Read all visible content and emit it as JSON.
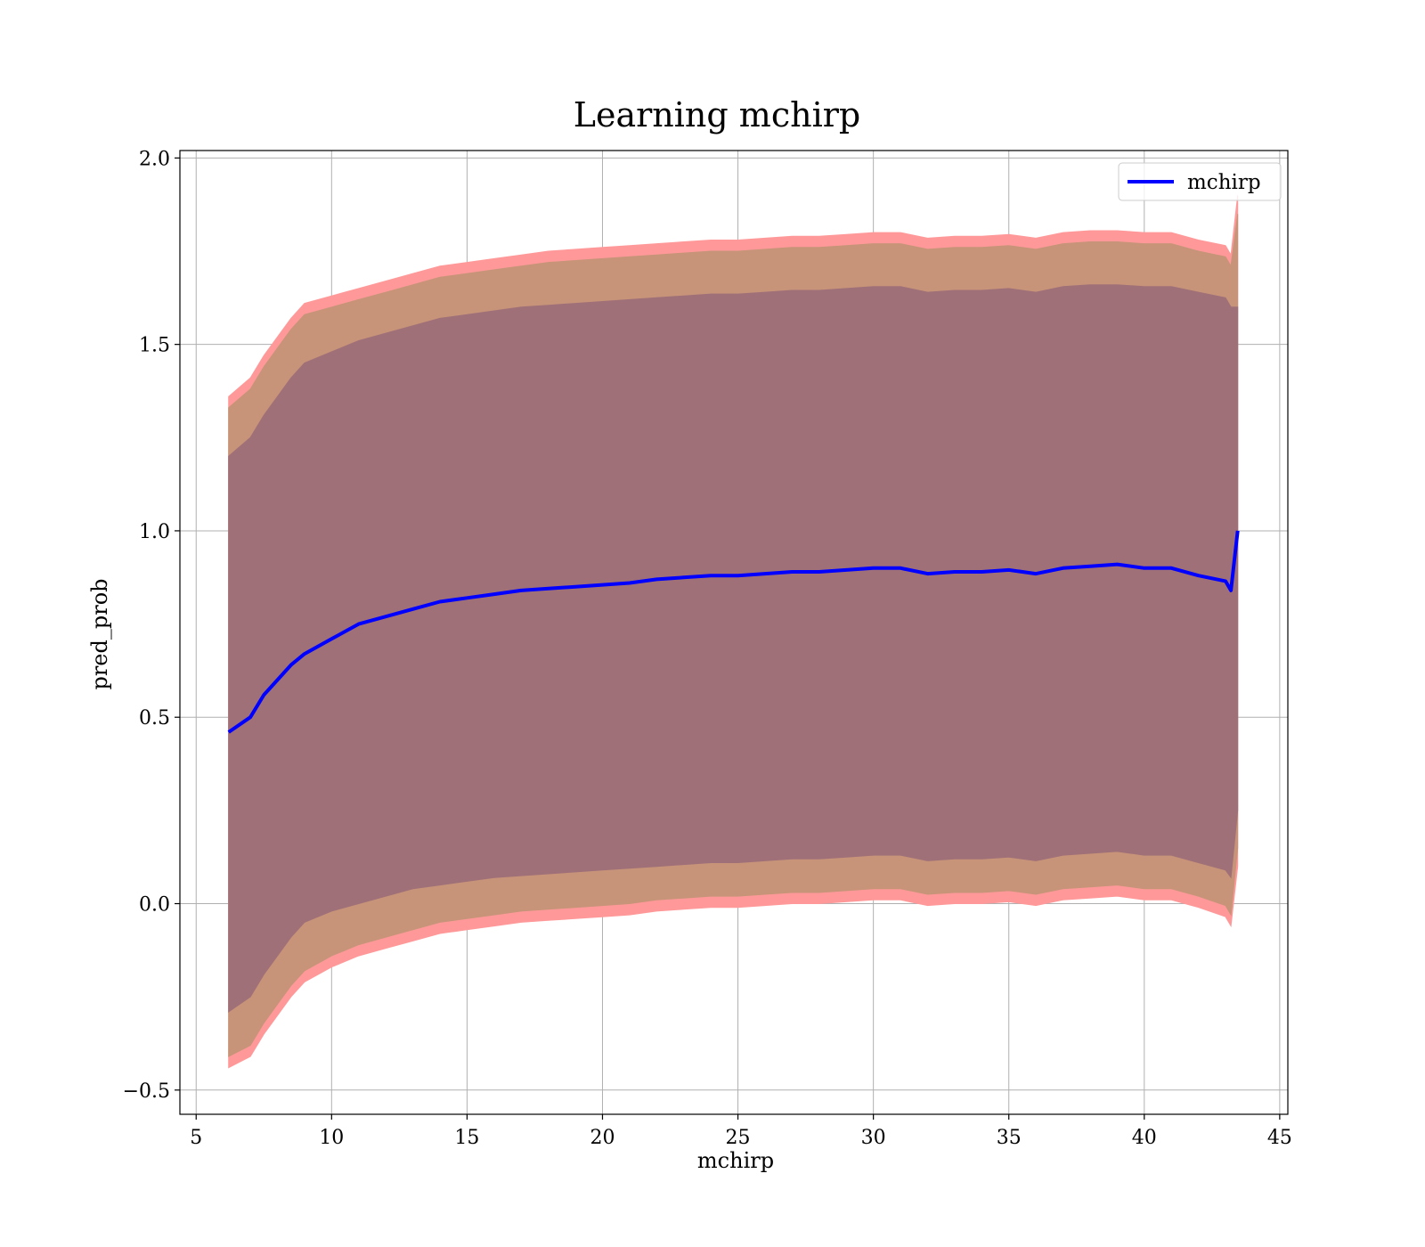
{
  "chart_data": {
    "type": "line",
    "title": "Learning mchirp",
    "xlabel": "mchirp",
    "ylabel": "pred_prob",
    "xlim": [
      4.4,
      45.3
    ],
    "ylim": [
      -0.565,
      2.02
    ],
    "xticks": [
      5,
      10,
      15,
      20,
      25,
      30,
      35,
      40,
      45
    ],
    "yticks": [
      -0.5,
      0.0,
      0.5,
      1.0,
      1.5,
      2.0
    ],
    "xtick_labels": [
      "5",
      "10",
      "15",
      "20",
      "25",
      "30",
      "35",
      "40",
      "45"
    ],
    "ytick_labels": [
      "−0.5",
      "0.0",
      "0.5",
      "1.0",
      "1.5",
      "2.0"
    ],
    "grid": true,
    "legend_position": "top-right",
    "colors": {
      "mean_line": "#0000ff",
      "band_outer": "#ff9999",
      "band_middle": "#c79479",
      "band_inner": "#a07078",
      "grid": "#b0b0b0"
    },
    "series": [
      {
        "name": "mchirp",
        "x": [
          6.2,
          7.0,
          7.5,
          8.0,
          8.5,
          9.0,
          10.0,
          11.0,
          12.0,
          13.0,
          14.0,
          15.0,
          16.0,
          17.0,
          18.0,
          19.0,
          20.0,
          21.0,
          22.0,
          23.0,
          24.0,
          25.0,
          26.0,
          27.0,
          28.0,
          29.0,
          30.0,
          31.0,
          32.0,
          33.0,
          34.0,
          35.0,
          36.0,
          37.0,
          38.0,
          39.0,
          40.0,
          41.0,
          42.0,
          43.0,
          43.2,
          43.45
        ],
        "y": [
          0.46,
          0.5,
          0.56,
          0.6,
          0.64,
          0.67,
          0.71,
          0.75,
          0.77,
          0.79,
          0.81,
          0.82,
          0.83,
          0.84,
          0.845,
          0.85,
          0.855,
          0.86,
          0.87,
          0.875,
          0.88,
          0.88,
          0.885,
          0.89,
          0.89,
          0.895,
          0.9,
          0.9,
          0.885,
          0.89,
          0.89,
          0.895,
          0.885,
          0.9,
          0.905,
          0.91,
          0.9,
          0.9,
          0.88,
          0.865,
          0.84,
          1.0
        ]
      }
    ],
    "bands": [
      {
        "level": "outer",
        "upper": [
          1.36,
          1.41,
          1.47,
          1.52,
          1.57,
          1.61,
          1.63,
          1.65,
          1.67,
          1.69,
          1.71,
          1.72,
          1.73,
          1.74,
          1.75,
          1.755,
          1.76,
          1.765,
          1.77,
          1.775,
          1.78,
          1.78,
          1.785,
          1.79,
          1.79,
          1.795,
          1.8,
          1.8,
          1.785,
          1.79,
          1.79,
          1.795,
          1.785,
          1.8,
          1.805,
          1.805,
          1.8,
          1.8,
          1.78,
          1.765,
          1.74,
          1.9
        ],
        "lower": [
          -0.44,
          -0.41,
          -0.35,
          -0.3,
          -0.25,
          -0.21,
          -0.17,
          -0.14,
          -0.12,
          -0.1,
          -0.08,
          -0.07,
          -0.06,
          -0.05,
          -0.045,
          -0.04,
          -0.035,
          -0.03,
          -0.02,
          -0.015,
          -0.01,
          -0.01,
          -0.005,
          0.0,
          0.0,
          0.005,
          0.01,
          0.01,
          -0.005,
          0.0,
          0.0,
          0.005,
          -0.005,
          0.01,
          0.015,
          0.02,
          0.01,
          0.01,
          -0.01,
          -0.035,
          -0.06,
          0.1
        ]
      },
      {
        "level": "middle",
        "upper": [
          1.33,
          1.38,
          1.44,
          1.49,
          1.54,
          1.58,
          1.6,
          1.62,
          1.64,
          1.66,
          1.68,
          1.69,
          1.7,
          1.71,
          1.72,
          1.725,
          1.73,
          1.735,
          1.74,
          1.745,
          1.75,
          1.75,
          1.755,
          1.76,
          1.76,
          1.765,
          1.77,
          1.77,
          1.755,
          1.76,
          1.76,
          1.765,
          1.755,
          1.77,
          1.775,
          1.775,
          1.77,
          1.77,
          1.75,
          1.735,
          1.71,
          1.85
        ],
        "lower": [
          -0.41,
          -0.38,
          -0.32,
          -0.27,
          -0.22,
          -0.18,
          -0.14,
          -0.11,
          -0.09,
          -0.07,
          -0.05,
          -0.04,
          -0.03,
          -0.02,
          -0.015,
          -0.01,
          -0.005,
          0.0,
          0.01,
          0.015,
          0.02,
          0.02,
          0.025,
          0.03,
          0.03,
          0.035,
          0.04,
          0.04,
          0.025,
          0.03,
          0.03,
          0.035,
          0.025,
          0.04,
          0.045,
          0.05,
          0.04,
          0.04,
          0.02,
          -0.005,
          -0.03,
          0.15
        ]
      },
      {
        "level": "inner",
        "upper": [
          1.2,
          1.25,
          1.31,
          1.36,
          1.41,
          1.45,
          1.48,
          1.51,
          1.53,
          1.55,
          1.57,
          1.58,
          1.59,
          1.6,
          1.605,
          1.61,
          1.615,
          1.62,
          1.625,
          1.63,
          1.635,
          1.635,
          1.64,
          1.645,
          1.645,
          1.65,
          1.655,
          1.655,
          1.64,
          1.645,
          1.645,
          1.65,
          1.64,
          1.655,
          1.66,
          1.66,
          1.655,
          1.655,
          1.64,
          1.625,
          1.6,
          1.6
        ],
        "lower": [
          -0.29,
          -0.25,
          -0.19,
          -0.14,
          -0.09,
          -0.05,
          -0.02,
          0.0,
          0.02,
          0.04,
          0.05,
          0.06,
          0.07,
          0.075,
          0.08,
          0.085,
          0.09,
          0.095,
          0.1,
          0.105,
          0.11,
          0.11,
          0.115,
          0.12,
          0.12,
          0.125,
          0.13,
          0.13,
          0.115,
          0.12,
          0.12,
          0.125,
          0.115,
          0.13,
          0.135,
          0.14,
          0.13,
          0.13,
          0.11,
          0.09,
          0.07,
          0.25
        ]
      }
    ]
  }
}
